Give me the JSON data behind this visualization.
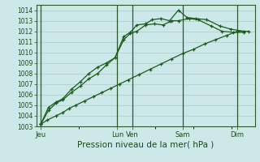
{
  "xlabel": "Pression niveau de la mer( hPa )",
  "bg_color": "#cce8e8",
  "grid_color": "#aacccc",
  "line_color": "#1a5c1a",
  "vline_color": "#2d5a2d",
  "ylim": [
    1003,
    1014.5
  ],
  "yticks": [
    1003,
    1004,
    1005,
    1006,
    1007,
    1008,
    1009,
    1010,
    1011,
    1012,
    1013,
    1014
  ],
  "day_labels": [
    "Jeu",
    "Lun",
    "Ven",
    "Sam",
    "Dim"
  ],
  "day_positions": [
    0.0,
    3.5,
    4.2,
    6.5,
    9.0
  ],
  "xlim": [
    -0.2,
    9.8
  ],
  "series1_x": [
    0.0,
    0.3,
    0.7,
    1.0,
    1.3,
    1.6,
    2.0,
    2.4,
    2.8,
    3.2,
    3.6,
    4.0,
    4.5,
    5.0,
    5.5,
    6.0,
    6.5,
    7.0,
    7.5,
    8.0,
    8.5,
    9.0,
    9.5
  ],
  "series1_y": [
    1003.2,
    1003.6,
    1004.0,
    1004.3,
    1004.7,
    1005.0,
    1005.4,
    1005.8,
    1006.2,
    1006.6,
    1007.0,
    1007.4,
    1007.9,
    1008.4,
    1008.9,
    1009.4,
    1009.9,
    1010.3,
    1010.8,
    1011.2,
    1011.6,
    1012.0,
    1012.0
  ],
  "series2_x": [
    0.0,
    0.35,
    0.7,
    1.0,
    1.4,
    1.8,
    2.2,
    2.6,
    3.0,
    3.4,
    3.8,
    4.1,
    4.4,
    4.8,
    5.2,
    5.6,
    6.0,
    6.3,
    6.8,
    7.2,
    7.8,
    8.3,
    8.8,
    9.3
  ],
  "series2_y": [
    1003.2,
    1004.5,
    1005.2,
    1005.5,
    1006.2,
    1006.8,
    1007.5,
    1008.0,
    1008.8,
    1009.5,
    1011.2,
    1011.8,
    1012.0,
    1012.6,
    1012.7,
    1012.6,
    1013.0,
    1013.0,
    1013.2,
    1013.1,
    1012.5,
    1012.0,
    1011.9,
    1011.9
  ],
  "series3_x": [
    0.0,
    0.35,
    0.7,
    1.0,
    1.4,
    1.8,
    2.2,
    2.6,
    3.0,
    3.4,
    3.8,
    4.1,
    4.4,
    4.8,
    5.1,
    5.5,
    5.9,
    6.3,
    6.7,
    7.1,
    7.6,
    8.2,
    8.7,
    9.3
  ],
  "series3_y": [
    1003.2,
    1004.8,
    1005.3,
    1005.6,
    1006.5,
    1007.2,
    1008.0,
    1008.6,
    1009.0,
    1009.5,
    1011.5,
    1011.9,
    1012.6,
    1012.7,
    1013.1,
    1013.2,
    1013.0,
    1014.0,
    1013.3,
    1013.2,
    1013.1,
    1012.5,
    1012.2,
    1012.0
  ]
}
